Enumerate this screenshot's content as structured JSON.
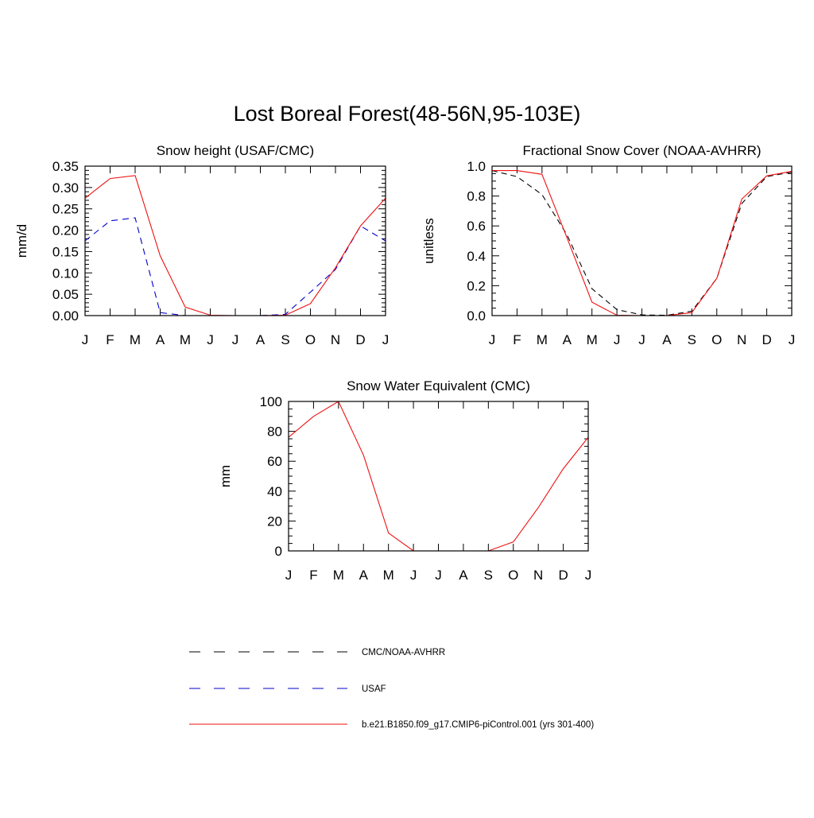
{
  "title": "Lost Boreal Forest(48-56N,95-103E)",
  "months": [
    "J",
    "F",
    "M",
    "A",
    "M",
    "J",
    "J",
    "A",
    "S",
    "O",
    "N",
    "D",
    "J"
  ],
  "colors": {
    "obs": "#000000",
    "usaf": "#0000cc",
    "model": "#ee1111"
  },
  "chart_data": [
    {
      "type": "line",
      "title": "Snow height (USAF/CMC)",
      "ylabel": "mm/d",
      "ylim": [
        0,
        0.35
      ],
      "yticks": [
        "0.00",
        "0.05",
        "0.10",
        "0.15",
        "0.20",
        "0.25",
        "0.30",
        "0.35"
      ],
      "series": [
        {
          "key": "obs",
          "values": [
            0,
            0,
            0,
            0,
            0,
            0,
            0,
            0,
            0,
            0,
            0,
            0,
            0
          ]
        },
        {
          "key": "usaf",
          "values": [
            0.175,
            0.222,
            0.229,
            0.007,
            0,
            0,
            0,
            0,
            0.003,
            0.055,
            0.108,
            0.21,
            0.175
          ]
        },
        {
          "key": "model",
          "values": [
            0.275,
            0.321,
            0.328,
            0.14,
            0.02,
            0.001,
            0,
            0,
            0.001,
            0.028,
            0.112,
            0.21,
            0.275
          ]
        }
      ]
    },
    {
      "type": "line",
      "title": "Fractional Snow Cover (NOAA-AVHRR)",
      "ylabel": "unitless",
      "ylim": [
        0,
        1.0
      ],
      "yticks": [
        "0.0",
        "0.2",
        "0.4",
        "0.6",
        "0.8",
        "1.0"
      ],
      "series": [
        {
          "key": "obs",
          "values": [
            0.97,
            0.93,
            0.81,
            0.54,
            0.18,
            0.04,
            0.005,
            0.002,
            0.03,
            0.25,
            0.75,
            0.93,
            0.96
          ]
        },
        {
          "key": "model",
          "values": [
            0.97,
            0.97,
            0.945,
            0.52,
            0.09,
            0.002,
            0,
            0,
            0.02,
            0.25,
            0.78,
            0.935,
            0.965
          ]
        }
      ]
    },
    {
      "type": "line",
      "title": "Snow Water Equivalent (CMC)",
      "ylabel": "mm",
      "ylim": [
        0,
        100
      ],
      "yticks": [
        "0",
        "20",
        "40",
        "60",
        "80",
        "100"
      ],
      "series": [
        {
          "key": "obs",
          "values": [
            0,
            0,
            0,
            0,
            0,
            0,
            0,
            0,
            0,
            0,
            0,
            0,
            0
          ]
        },
        {
          "key": "model",
          "values": [
            76,
            90,
            100,
            64,
            12,
            0,
            0,
            0,
            0,
            6,
            29,
            55,
            76
          ]
        }
      ]
    }
  ],
  "legend": [
    {
      "key": "obs",
      "label": "CMC/NOAA-AVHRR",
      "dash": "long-dash"
    },
    {
      "key": "usaf",
      "label": "USAF",
      "dash": "long-dash"
    },
    {
      "key": "model",
      "label": "b.e21.B1850.f09_g17.CMIP6-piControl.001 (yrs 301-400)",
      "dash": "solid"
    }
  ]
}
